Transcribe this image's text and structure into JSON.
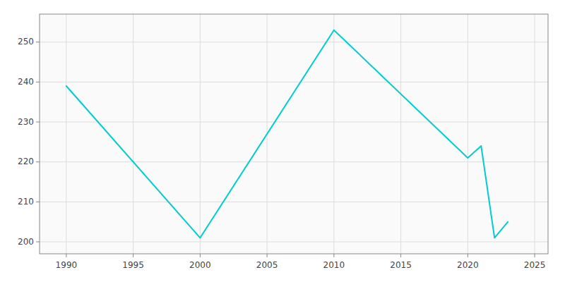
{
  "chart_data": {
    "type": "line",
    "x": [
      1990,
      2000,
      2010,
      2020,
      2021,
      2022,
      2023
    ],
    "values": [
      239,
      201,
      253,
      221,
      224,
      201,
      205
    ],
    "color": "#00CDCD",
    "xlim": [
      1988,
      2026
    ],
    "ylim": [
      197,
      257
    ],
    "xticks": [
      1990,
      1995,
      2000,
      2005,
      2010,
      2015,
      2020,
      2025
    ],
    "yticks": [
      200,
      210,
      220,
      230,
      240,
      250
    ],
    "grid": true
  }
}
